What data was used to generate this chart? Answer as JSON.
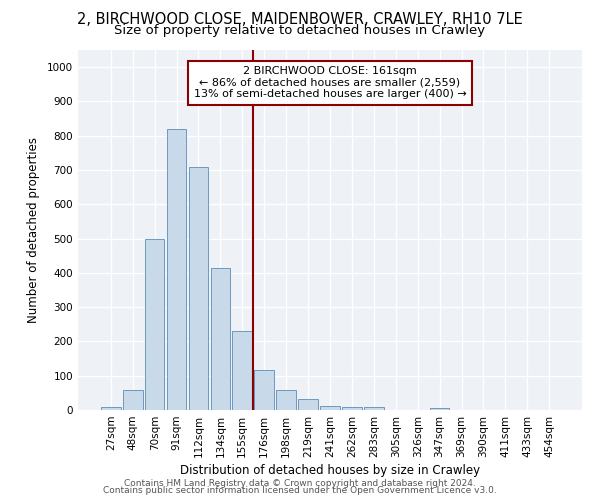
{
  "title_line1": "2, BIRCHWOOD CLOSE, MAIDENBOWER, CRAWLEY, RH10 7LE",
  "title_line2": "Size of property relative to detached houses in Crawley",
  "xlabel": "Distribution of detached houses by size in Crawley",
  "ylabel": "Number of detached properties",
  "bar_labels": [
    "27sqm",
    "48sqm",
    "70sqm",
    "91sqm",
    "112sqm",
    "134sqm",
    "155sqm",
    "176sqm",
    "198sqm",
    "219sqm",
    "241sqm",
    "262sqm",
    "283sqm",
    "305sqm",
    "326sqm",
    "347sqm",
    "369sqm",
    "390sqm",
    "411sqm",
    "433sqm",
    "454sqm"
  ],
  "bar_values": [
    8,
    57,
    500,
    820,
    710,
    415,
    230,
    118,
    57,
    33,
    12,
    10,
    10,
    0,
    0,
    7,
    0,
    0,
    0,
    0,
    0
  ],
  "bar_color": "#c8d9ea",
  "bar_edge_color": "#5b8db8",
  "vline_x": 6.5,
  "vline_color": "#8b0000",
  "annotation_text": "2 BIRCHWOOD CLOSE: 161sqm\n← 86% of detached houses are smaller (2,559)\n13% of semi-detached houses are larger (400) →",
  "annotation_box_color": "#8b0000",
  "ylim": [
    0,
    1050
  ],
  "yticks": [
    0,
    100,
    200,
    300,
    400,
    500,
    600,
    700,
    800,
    900,
    1000
  ],
  "footer_line1": "Contains HM Land Registry data © Crown copyright and database right 2024.",
  "footer_line2": "Contains public sector information licensed under the Open Government Licence v3.0.",
  "background_color": "#eef2f7",
  "title_fontsize": 10.5,
  "subtitle_fontsize": 9.5,
  "tick_fontsize": 7.5,
  "bar_width": 0.9,
  "axis_label_fontsize": 8.5
}
